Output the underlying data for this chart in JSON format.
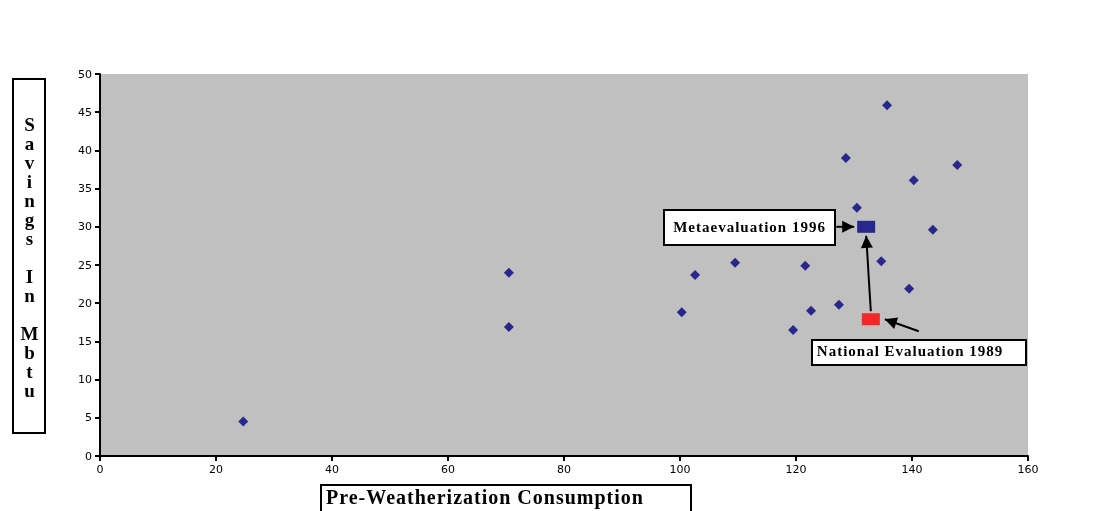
{
  "chart_data": {
    "type": "scatter",
    "xlabel": "Pre-Weatherization Consumption",
    "ylabel": "Savings In Mbtu",
    "xlim": [
      0,
      160
    ],
    "xticks": [
      0,
      20,
      40,
      60,
      80,
      100,
      120,
      140,
      160
    ],
    "ylim": [
      0,
      50
    ],
    "yticks": [
      0,
      5,
      10,
      15,
      20,
      25,
      30,
      35,
      40,
      45,
      50
    ],
    "grid": false,
    "series": [
      {
        "color": "#000080",
        "marker": "diamond",
        "x": [
          24.7,
          70.5,
          70.5,
          100.3,
          102.6,
          109.5,
          119.5,
          121.6,
          122.6,
          127.4,
          128.6,
          130.5,
          134.7,
          135.7,
          139.5,
          140.3,
          143.6,
          147.8
        ],
        "values": [
          4.5,
          24.0,
          16.9,
          18.8,
          23.7,
          25.3,
          16.5,
          24.9,
          19.0,
          19.8,
          39.0,
          32.5,
          25.5,
          45.9,
          21.9,
          36.1,
          29.6,
          38.1
        ]
      },
      {
        "color": "#000080",
        "marker": "square",
        "x": [
          132.1
        ],
        "values": [
          30.0
        ]
      },
      {
        "color": "#ff0000",
        "marker": "square",
        "x": [
          132.9
        ],
        "values": [
          17.9
        ]
      }
    ],
    "annotations": [
      {
        "text": "Metaevaluation 1996",
        "x": 132.1,
        "y": 30.0
      },
      {
        "text": "National Evaluation 1989",
        "x": 132.9,
        "y": 17.9
      }
    ]
  }
}
